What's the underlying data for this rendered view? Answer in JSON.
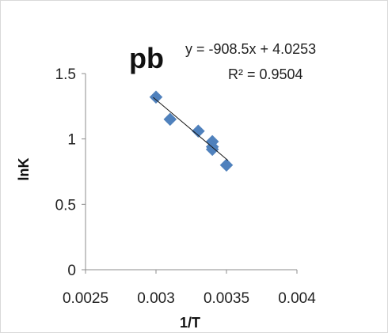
{
  "chart_data": {
    "type": "scatter",
    "title": "pb",
    "xlabel": "1/T",
    "ylabel": "lnK",
    "xlim": [
      0.0025,
      0.004
    ],
    "ylim": [
      0,
      1.5
    ],
    "xticks": [
      "0.0025",
      "0.003",
      "0.0035",
      "0.004"
    ],
    "yticks": [
      "0",
      "0.5",
      "1",
      "1.5"
    ],
    "series": [
      {
        "x": [
          0.003,
          0.0031,
          0.0033,
          0.0034,
          0.0034,
          0.0034,
          0.0035
        ],
        "y": [
          1.32,
          1.15,
          1.06,
          0.98,
          0.94,
          0.92,
          0.8
        ]
      }
    ],
    "trendline": {
      "equation": "y = -908.5x + 4.0253",
      "r2": "R² = 0.9504",
      "slope": -908.5,
      "intercept": 4.0253,
      "x_range": [
        0.00298,
        0.00351
      ]
    },
    "grid": false,
    "legend": "none",
    "marker_color": "#4f81bd",
    "trendline_color": "#1a1a1a"
  }
}
